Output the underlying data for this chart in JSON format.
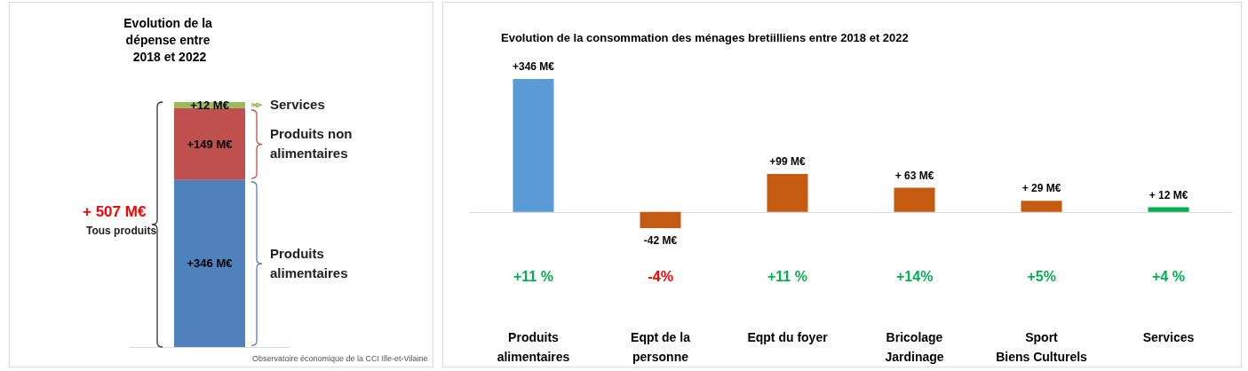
{
  "chart_data": [
    {
      "type": "bar",
      "title": "Evolution de la dépense entre 2018 et 2022",
      "categories": [
        null
      ],
      "stacked": true,
      "series": [
        {
          "name": "Produits alimentaires",
          "color": "#4f81bd",
          "values": [
            346
          ],
          "value_labels": [
            "+346 M€"
          ]
        },
        {
          "name": "Produits non alimentaires",
          "color": "#c0504d",
          "values": [
            149
          ],
          "value_labels": [
            "+149 M€"
          ]
        },
        {
          "name": "Services",
          "color": "#9bbb59",
          "values": [
            12
          ],
          "value_labels": [
            "+12 M€"
          ]
        }
      ],
      "totals": [
        "+ 507 M€"
      ],
      "annotations": [
        "Tous produits",
        "Observatoire économique de la CCI Ille-et-Vilaine"
      ]
    },
    {
      "type": "bar",
      "title": "Evolution de la consommation des ménages bretiilliens entre 2018 et 2022",
      "categories": [
        "Produits\nalimentaires",
        "Eqpt de la\npersonne",
        "Eqpt du foyer",
        "Bricolage\nJardinage",
        "Sport\nBiens Culturels",
        "Services"
      ],
      "values": [
        346,
        -42,
        99,
        63,
        29,
        12
      ],
      "colors": [
        "#5b9bd5",
        "#c55a11",
        "#c55a11",
        "#c55a11",
        "#c55a11",
        "#00b050"
      ],
      "value_labels": [
        "+346 M€",
        "-42 M€",
        "+99 M€",
        "+ 63 M€",
        "+ 29 M€",
        "+ 12 M€"
      ],
      "annotations": [
        "+11 %",
        "-4%",
        "+11 %",
        "+14%",
        "+5%",
        "+4 %"
      ]
    }
  ]
}
